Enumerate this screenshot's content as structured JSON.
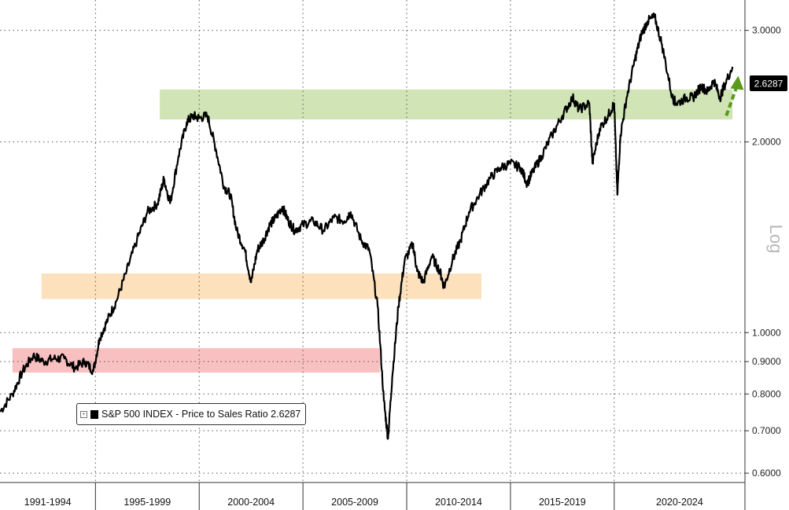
{
  "chart_data": {
    "type": "line",
    "title": "",
    "xlabel": "",
    "ylabel": "",
    "scale_label": "Log",
    "y_scale": "log",
    "ylim": [
      0.58,
      3.35
    ],
    "y_ticks": [
      {
        "value": 3.0,
        "label": "3.0000"
      },
      {
        "value": 2.0,
        "label": "2.0000"
      },
      {
        "value": 1.0,
        "label": "1.0000"
      },
      {
        "value": 0.9,
        "label": "0.9000"
      },
      {
        "value": 0.8,
        "label": "0.8000"
      },
      {
        "value": 0.7,
        "label": "0.7000"
      },
      {
        "value": 0.6,
        "label": "0.6000"
      }
    ],
    "grid": true,
    "x_range": [
      1990.4,
      2026.3
    ],
    "x_eras": [
      {
        "label": "1991-1994",
        "start": 1990.4,
        "end": 1995.0
      },
      {
        "label": "1995-1999",
        "start": 1995.0,
        "end": 2000.0
      },
      {
        "label": "2000-2004",
        "start": 2000.0,
        "end": 2005.0
      },
      {
        "label": "2005-2009",
        "start": 2005.0,
        "end": 2010.0
      },
      {
        "label": "2010-2014",
        "start": 2010.0,
        "end": 2015.0
      },
      {
        "label": "2015-2019",
        "start": 2015.0,
        "end": 2020.0
      },
      {
        "label": "2020-2024",
        "start": 2020.0,
        "end": 2026.3
      }
    ],
    "series": [
      {
        "name": "S&P 500 INDEX - Price to Sales Ratio",
        "last_value_label": "2.6287",
        "color": "#000000",
        "x": [
          1990.4,
          1991.0,
          1991.5,
          1992.0,
          1992.5,
          1993.0,
          1993.5,
          1994.0,
          1994.5,
          1994.9,
          1995.2,
          1995.6,
          1996.0,
          1996.5,
          1997.0,
          1997.5,
          1998.0,
          1998.3,
          1998.6,
          1999.0,
          1999.4,
          1999.7,
          2000.0,
          2000.4,
          2000.8,
          2001.2,
          2001.5,
          2001.8,
          2002.2,
          2002.5,
          2002.8,
          2003.1,
          2003.4,
          2003.7,
          2004.0,
          2004.3,
          2004.6,
          2005.0,
          2005.5,
          2006.0,
          2006.5,
          2007.0,
          2007.3,
          2007.8,
          2008.2,
          2008.6,
          2008.9,
          2009.1,
          2009.3,
          2009.6,
          2009.9,
          2010.3,
          2010.5,
          2010.8,
          2011.2,
          2011.6,
          2011.8,
          2012.2,
          2012.6,
          2013.0,
          2013.5,
          2014.0,
          2014.5,
          2015.0,
          2015.5,
          2015.8,
          2016.1,
          2016.5,
          2017.0,
          2017.5,
          2018.0,
          2018.3,
          2018.8,
          2018.95,
          2019.3,
          2019.7,
          2020.0,
          2020.15,
          2020.3,
          2020.6,
          2021.0,
          2021.3,
          2021.6,
          2021.95,
          2022.3,
          2022.8,
          2023.0,
          2023.5,
          2023.8,
          2024.2,
          2024.5,
          2024.8,
          2025.1,
          2025.3,
          2025.7
        ],
        "y": [
          0.75,
          0.8,
          0.87,
          0.92,
          0.9,
          0.91,
          0.91,
          0.88,
          0.9,
          0.87,
          0.98,
          1.05,
          1.12,
          1.25,
          1.4,
          1.55,
          1.6,
          1.75,
          1.6,
          1.9,
          2.15,
          2.2,
          2.18,
          2.2,
          1.95,
          1.7,
          1.65,
          1.45,
          1.35,
          1.2,
          1.35,
          1.4,
          1.48,
          1.52,
          1.58,
          1.5,
          1.45,
          1.48,
          1.5,
          1.45,
          1.52,
          1.5,
          1.55,
          1.4,
          1.35,
          1.1,
          0.78,
          0.68,
          0.85,
          1.1,
          1.3,
          1.38,
          1.25,
          1.2,
          1.32,
          1.25,
          1.18,
          1.3,
          1.4,
          1.55,
          1.65,
          1.75,
          1.82,
          1.85,
          1.82,
          1.72,
          1.8,
          1.9,
          2.05,
          2.2,
          2.35,
          2.25,
          2.3,
          1.85,
          2.1,
          2.2,
          2.3,
          1.65,
          2.05,
          2.35,
          2.7,
          2.95,
          3.1,
          3.15,
          2.85,
          2.35,
          2.3,
          2.35,
          2.35,
          2.45,
          2.4,
          2.5,
          2.35,
          2.45,
          2.6287
        ]
      }
    ],
    "bands": [
      {
        "color": "#c8dfa8",
        "x": [
          1998.1,
          2025.7
        ],
        "y": [
          2.17,
          2.42
        ]
      },
      {
        "color": "#fcdcb0",
        "x": [
          1992.4,
          2013.6
        ],
        "y": [
          1.13,
          1.24
        ]
      },
      {
        "color": "#f7b5b5",
        "x": [
          1991.0,
          2008.7
        ],
        "y": [
          0.865,
          0.945
        ]
      }
    ],
    "arrow": {
      "color": "#5a9a1a",
      "x": [
        2025.4,
        2025.9
      ],
      "y": [
        2.2,
        2.5
      ]
    },
    "legend": {
      "text": "S&P 500 INDEX - Price to Sales Ratio 2.6287"
    }
  }
}
